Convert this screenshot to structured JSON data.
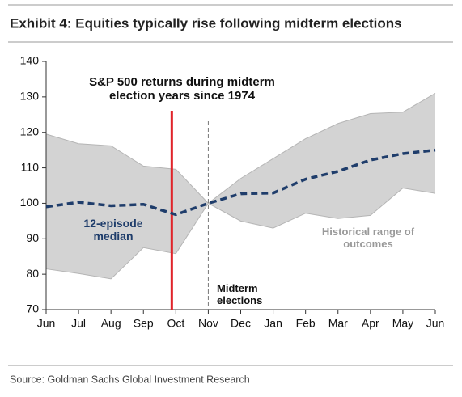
{
  "header": {
    "title": "Exhibit 4: Equities typically rise following midterm elections"
  },
  "chart_data": {
    "type": "line",
    "title": "S&P 500 returns during midterm election years since 1974",
    "categories": [
      "Jun",
      "Jul",
      "Aug",
      "Sep",
      "Oct",
      "Nov",
      "Dec",
      "Jan",
      "Feb",
      "Mar",
      "Apr",
      "May",
      "Jun"
    ],
    "series": [
      {
        "name": "12-episode median",
        "color": "#1f3d6b",
        "values": [
          99,
          100.3,
          99.3,
          99.7,
          96.8,
          100,
          102.7,
          102.9,
          106.8,
          109,
          112.2,
          114,
          115
        ]
      }
    ],
    "range": {
      "name": "Historical range of outcomes",
      "color": "#d3d3d3",
      "upper": [
        119.5,
        116.8,
        116.2,
        110.5,
        109.6,
        100,
        107,
        112.6,
        118.2,
        122.5,
        125.3,
        125.7,
        131
      ],
      "lower": [
        81.5,
        80.2,
        78.7,
        87.5,
        85.8,
        100,
        95,
        93,
        97.2,
        95.7,
        96.6,
        104.3,
        102.8
      ]
    },
    "markers": [
      {
        "category": 4,
        "color": "#e0242a"
      },
      {
        "category": 5,
        "label": "Midterm elections",
        "color": "#777777"
      }
    ],
    "ylim": [
      70,
      140
    ],
    "yticks": [
      70,
      80,
      90,
      100,
      110,
      120,
      130,
      140
    ]
  },
  "footer": {
    "source": "Source: Goldman Sachs Global Investment Research"
  }
}
